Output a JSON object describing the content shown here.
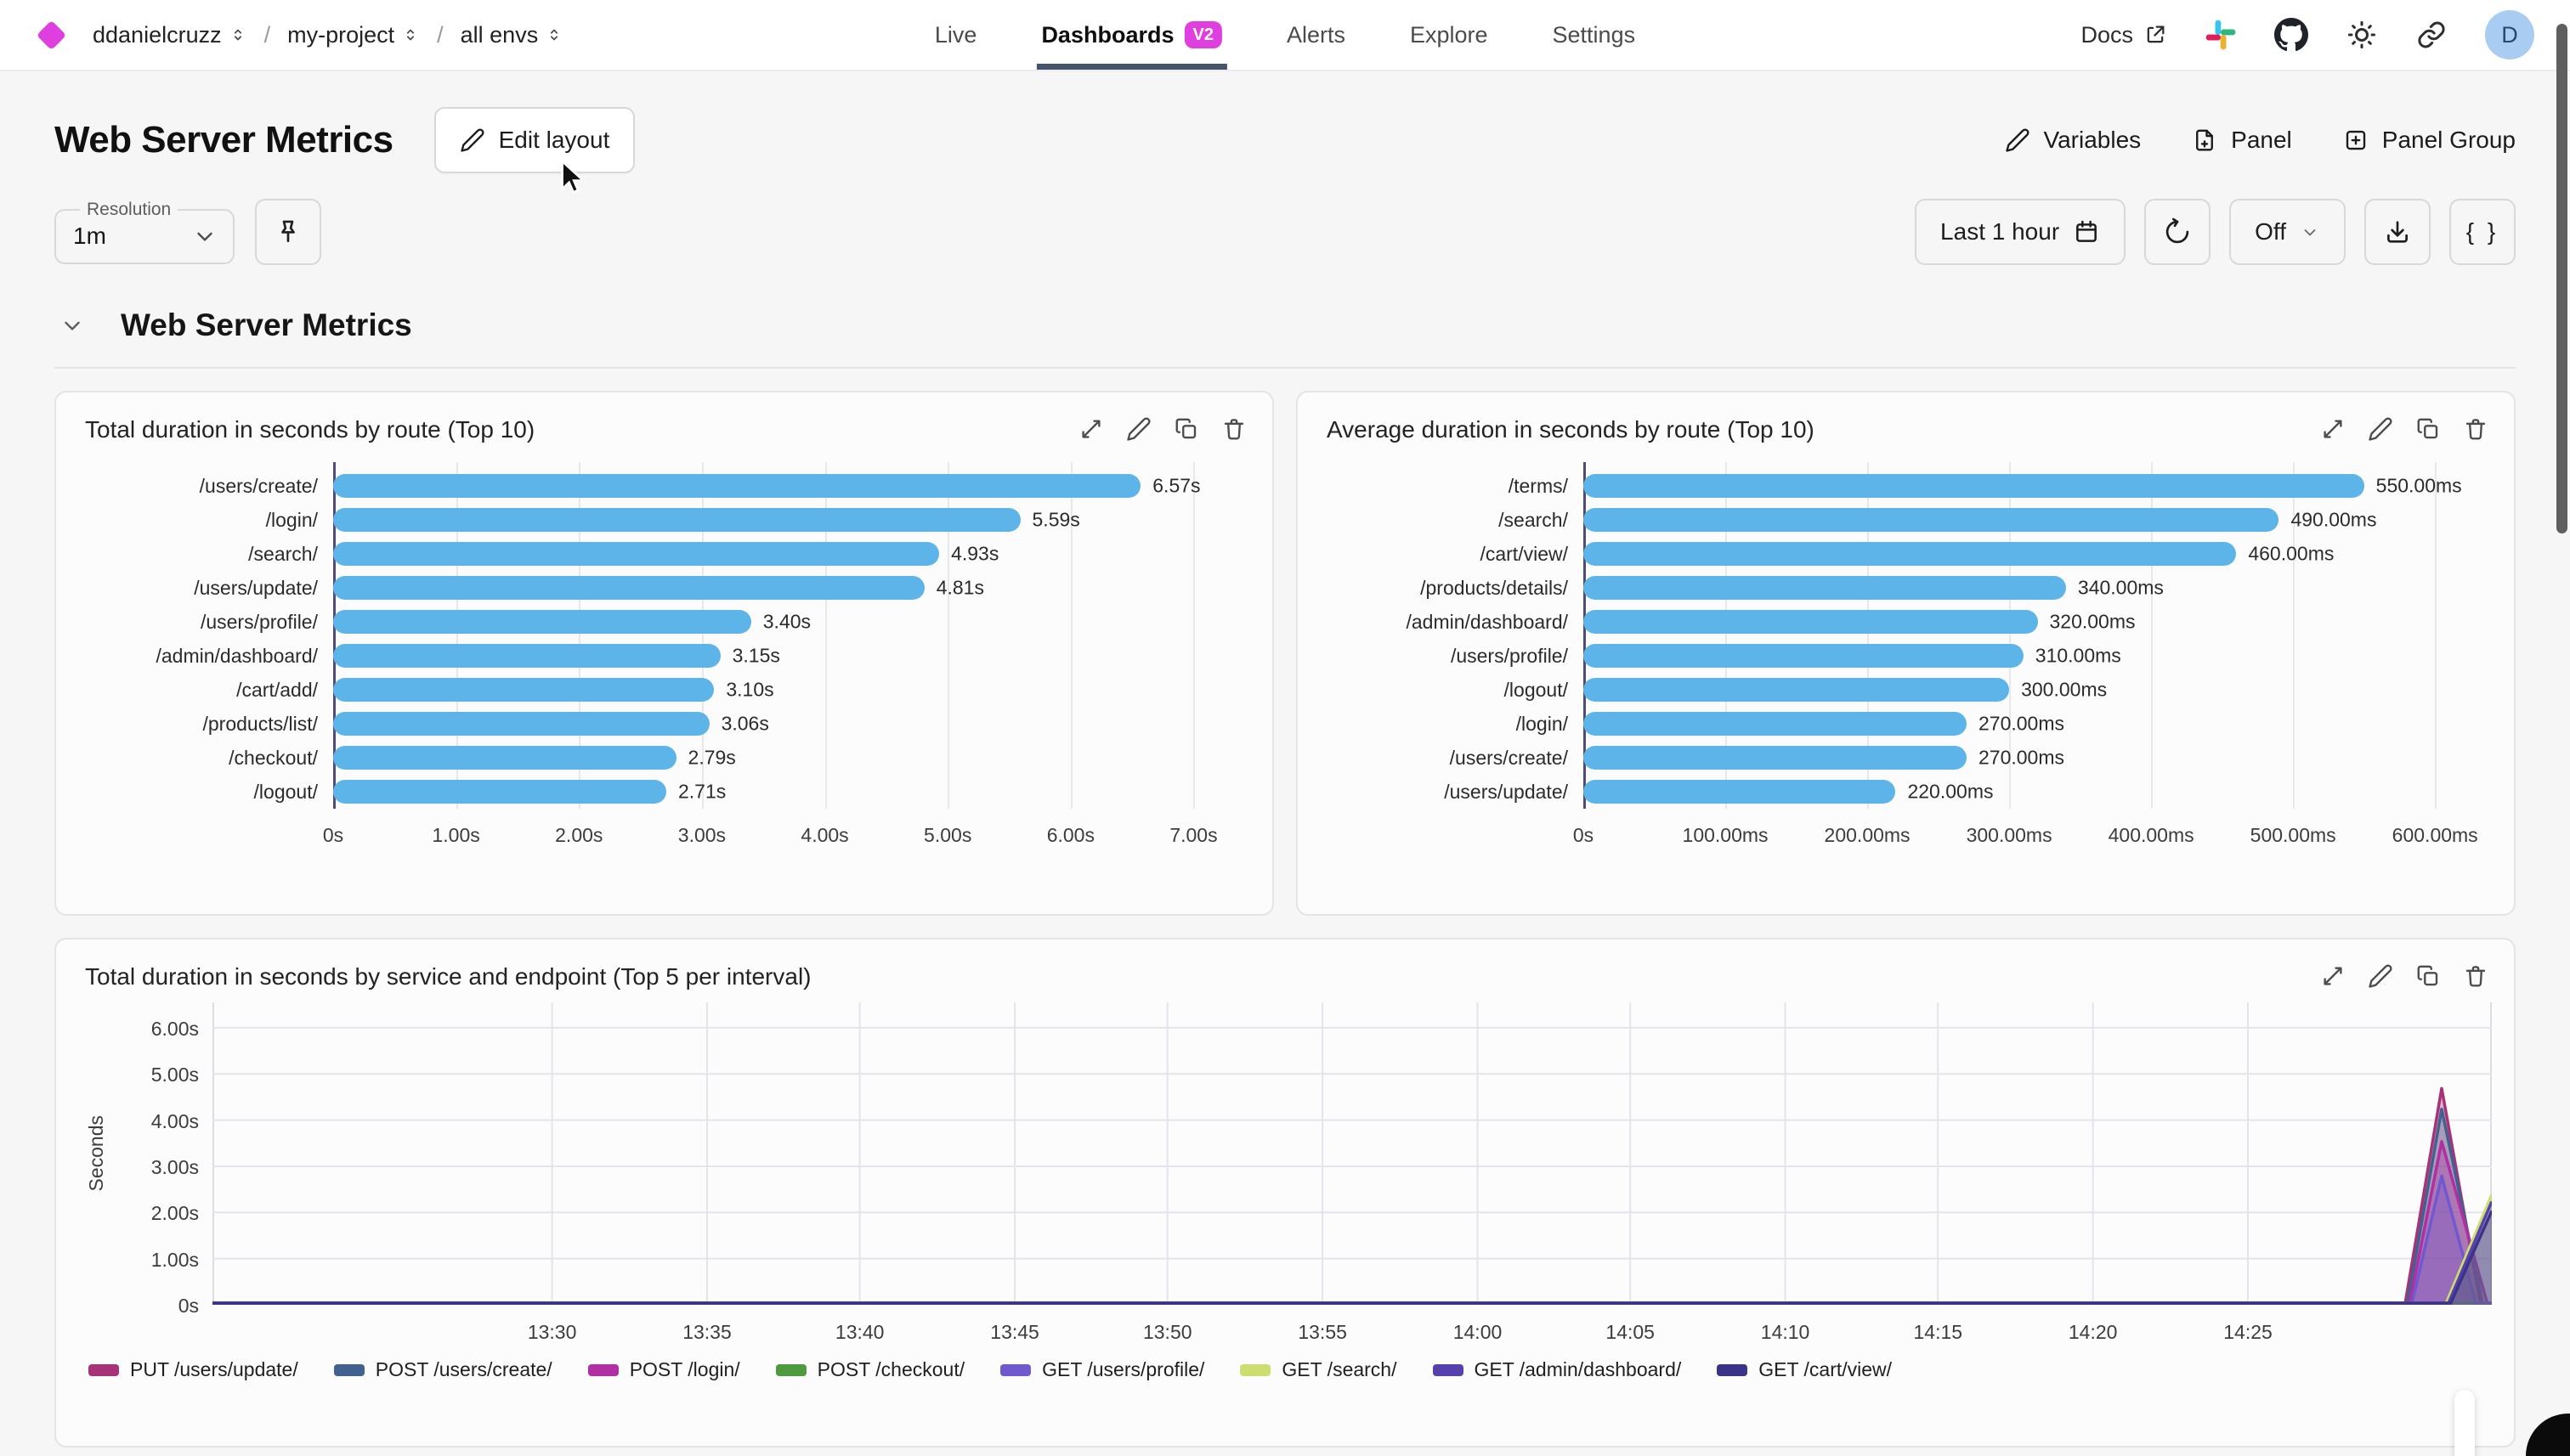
{
  "colors": {
    "accent": "#df3fdf",
    "bar_blue": "#5db4e8",
    "avatar_bg": "#a9cdf2",
    "tab_underline": "#44546a"
  },
  "nav": {
    "breadcrumb": [
      {
        "label": "ddanielcruzz"
      },
      {
        "label": "my-project"
      },
      {
        "label": "all envs"
      }
    ],
    "tabs": [
      {
        "label": "Live",
        "active": false
      },
      {
        "label": "Dashboards",
        "badge": "V2",
        "active": true
      },
      {
        "label": "Alerts",
        "active": false
      },
      {
        "label": "Explore",
        "active": false
      },
      {
        "label": "Settings",
        "active": false
      }
    ],
    "docs_label": "Docs",
    "right_icons": [
      {
        "icon": "slack",
        "name": "slack-icon"
      },
      {
        "icon": "github",
        "name": "github-icon"
      },
      {
        "icon": "sun",
        "name": "theme-toggle-icon"
      },
      {
        "icon": "link",
        "name": "share-link-icon"
      }
    ],
    "avatar_initial": "D"
  },
  "header": {
    "title": "Web Server Metrics",
    "edit_layout_label": "Edit layout",
    "actions": [
      {
        "label": "Variables",
        "icon": "pencil"
      },
      {
        "label": "Panel",
        "icon": "file-plus"
      },
      {
        "label": "Panel Group",
        "icon": "square-plus"
      }
    ]
  },
  "toolbar": {
    "resolution_label": "Resolution",
    "resolution_value": "1m",
    "time_range_label": "Last 1 hour",
    "auto_refresh_label": "Off",
    "braces_label": "{ }"
  },
  "section": {
    "title": "Web Server Metrics"
  },
  "chart_data": [
    {
      "type": "bar",
      "orientation": "horizontal",
      "title": "Total duration in seconds by route (Top 10)",
      "unit": "s",
      "categories": [
        "/users/create/",
        "/login/",
        "/search/",
        "/users/update/",
        "/users/profile/",
        "/admin/dashboard/",
        "/cart/add/",
        "/products/list/",
        "/checkout/",
        "/logout/"
      ],
      "values": [
        6.57,
        5.59,
        4.93,
        4.81,
        3.4,
        3.15,
        3.1,
        3.06,
        2.79,
        2.71
      ],
      "value_labels": [
        "6.57s",
        "5.59s",
        "4.93s",
        "4.81s",
        "3.40s",
        "3.15s",
        "3.10s",
        "3.06s",
        "2.79s",
        "2.71s"
      ],
      "x_ticks": [
        {
          "v": 0,
          "label": "0s"
        },
        {
          "v": 1,
          "label": "1.00s"
        },
        {
          "v": 2,
          "label": "2.00s"
        },
        {
          "v": 3,
          "label": "3.00s"
        },
        {
          "v": 4,
          "label": "4.00s"
        },
        {
          "v": 5,
          "label": "5.00s"
        },
        {
          "v": 6,
          "label": "6.00s"
        },
        {
          "v": 7,
          "label": "7.00s"
        }
      ],
      "axis_max": 7.46,
      "cat_col_width": 300,
      "bar_color": "#5db4e8"
    },
    {
      "type": "bar",
      "orientation": "horizontal",
      "title": "Average duration in seconds by route (Top 10)",
      "unit": "ms",
      "categories": [
        "/terms/",
        "/search/",
        "/cart/view/",
        "/products/details/",
        "/admin/dashboard/",
        "/users/profile/",
        "/logout/",
        "/login/",
        "/users/create/",
        "/users/update/"
      ],
      "values": [
        550,
        490,
        460,
        340,
        320,
        310,
        300,
        270,
        270,
        220
      ],
      "value_labels": [
        "550.00ms",
        "490.00ms",
        "460.00ms",
        "340.00ms",
        "320.00ms",
        "310.00ms",
        "300.00ms",
        "270.00ms",
        "270.00ms",
        "220.00ms"
      ],
      "x_ticks": [
        {
          "v": 0,
          "label": "0s"
        },
        {
          "v": 100,
          "label": "100.00ms"
        },
        {
          "v": 200,
          "label": "200.00ms"
        },
        {
          "v": 300,
          "label": "300.00ms"
        },
        {
          "v": 400,
          "label": "400.00ms"
        },
        {
          "v": 500,
          "label": "500.00ms"
        },
        {
          "v": 600,
          "label": "600.00ms"
        }
      ],
      "axis_max": 640,
      "cat_col_width": 310,
      "bar_color": "#5db4e8"
    },
    {
      "type": "area",
      "title": "Total duration in seconds by service and endpoint (Top 5 per interval)",
      "ylabel": "Seconds",
      "y_axis_max": 6.55,
      "y_ticks": [
        {
          "v": 0,
          "label": "0s"
        },
        {
          "v": 1,
          "label": "1.00s"
        },
        {
          "v": 2,
          "label": "2.00s"
        },
        {
          "v": 3,
          "label": "3.00s"
        },
        {
          "v": 4,
          "label": "4.00s"
        },
        {
          "v": 5,
          "label": "5.00s"
        },
        {
          "v": 6,
          "label": "6.00s"
        }
      ],
      "x_ticks": [
        {
          "pos": 0.149,
          "label": "13:30"
        },
        {
          "pos": 0.217,
          "label": "13:35"
        },
        {
          "pos": 0.284,
          "label": "13:40"
        },
        {
          "pos": 0.352,
          "label": "13:45"
        },
        {
          "pos": 0.419,
          "label": "13:50"
        },
        {
          "pos": 0.487,
          "label": "13:55"
        },
        {
          "pos": 0.555,
          "label": "14:00"
        },
        {
          "pos": 0.622,
          "label": "14:05"
        },
        {
          "pos": 0.69,
          "label": "14:10"
        },
        {
          "pos": 0.757,
          "label": "14:15"
        },
        {
          "pos": 0.825,
          "label": "14:20"
        },
        {
          "pos": 0.893,
          "label": "14:25"
        }
      ],
      "series": [
        {
          "name": "PUT /users/update/",
          "color": "#a83277",
          "points": [
            [
              0,
              0
            ],
            [
              0.962,
              0
            ],
            [
              0.978,
              4.65
            ],
            [
              0.995,
              0
            ],
            [
              1,
              0
            ]
          ]
        },
        {
          "name": "POST /users/create/",
          "color": "#41628e",
          "points": [
            [
              0,
              0
            ],
            [
              0.963,
              0
            ],
            [
              0.978,
              4.2
            ],
            [
              0.996,
              0
            ],
            [
              1,
              0
            ]
          ]
        },
        {
          "name": "POST /login/",
          "color": "#b02fa3",
          "points": [
            [
              0,
              0
            ],
            [
              0.964,
              0
            ],
            [
              0.978,
              3.5
            ],
            [
              0.998,
              0
            ],
            [
              1,
              0
            ]
          ]
        },
        {
          "name": "POST /checkout/",
          "color": "#4e9a3f",
          "points": [
            [
              0,
              0
            ],
            [
              1,
              0
            ]
          ]
        },
        {
          "name": "GET /users/profile/",
          "color": "#7058cf",
          "points": [
            [
              0,
              0
            ],
            [
              0.965,
              0
            ],
            [
              0.978,
              2.75
            ],
            [
              0.993,
              0
            ],
            [
              1,
              0
            ]
          ]
        },
        {
          "name": "GET /search/",
          "color": "#cedd6f",
          "points": [
            [
              0,
              0
            ],
            [
              0.98,
              0
            ],
            [
              1,
              2.35
            ]
          ]
        },
        {
          "name": "GET /admin/dashboard/",
          "color": "#5540ae",
          "points": [
            [
              0,
              0
            ],
            [
              0.981,
              0
            ],
            [
              1,
              2.2
            ]
          ]
        },
        {
          "name": "GET /cart/view/",
          "color": "#3a3387",
          "points": [
            [
              0,
              0
            ],
            [
              0.982,
              0
            ],
            [
              1,
              2.0
            ]
          ]
        }
      ]
    }
  ]
}
